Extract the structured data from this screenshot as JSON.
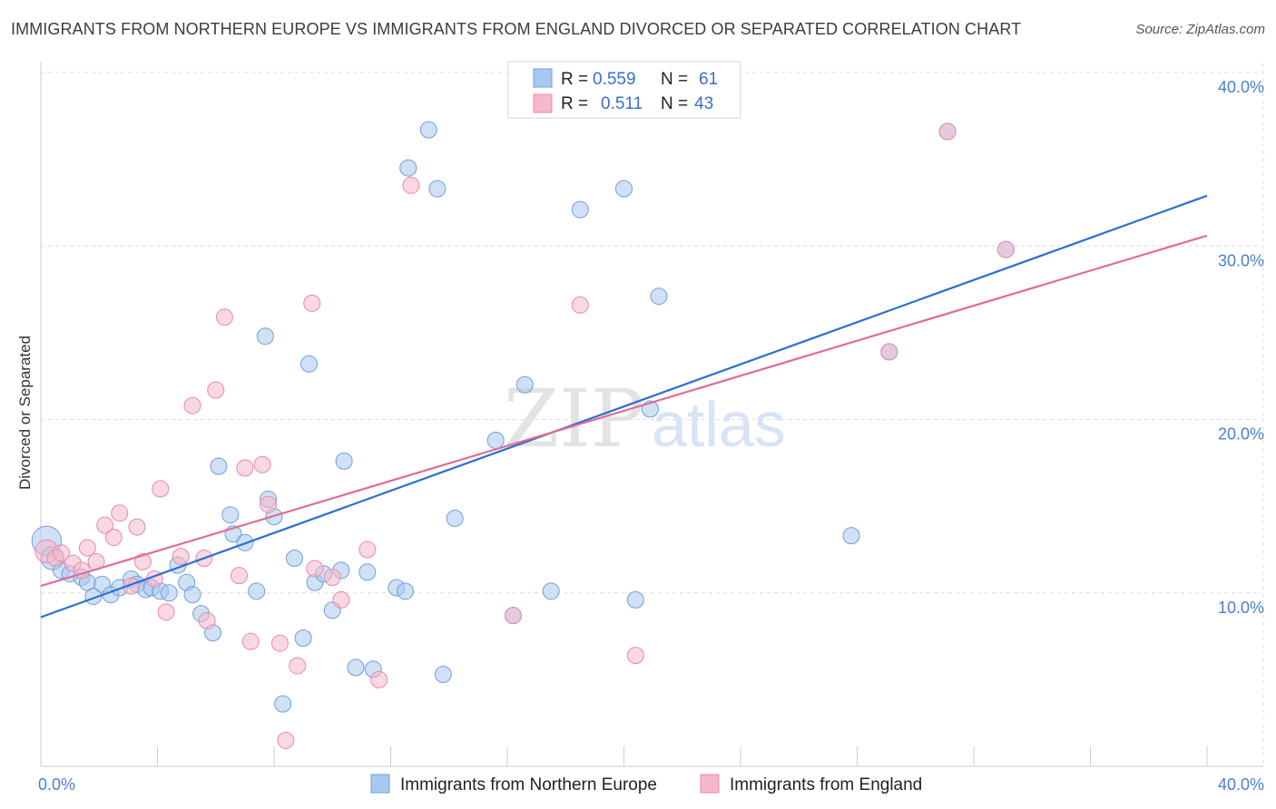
{
  "title": "IMMIGRANTS FROM NORTHERN EUROPE VS IMMIGRANTS FROM ENGLAND DIVORCED OR SEPARATED CORRELATION CHART",
  "source": "Source: ZipAtlas.com",
  "watermark": {
    "zip": "ZIP",
    "atlas": "atlas"
  },
  "colors": {
    "blue_fill": "#a9c8ef",
    "blue_stroke": "#6f9fdc",
    "blue_line": "#2b6fd0",
    "pink_fill": "#f6b8ca",
    "pink_stroke": "#e88aa8",
    "pink_line": "#e06c98",
    "grid": "#dddddd",
    "tick_text": "#4a7fd0"
  },
  "legend": {
    "rows": [
      {
        "r_label": "R =",
        "r_value": "0.559",
        "n_label": "N =",
        "n_value": "61"
      },
      {
        "r_label": "R =",
        "r_value": "0.511",
        "n_label": "N =",
        "n_value": "43"
      }
    ]
  },
  "chart_data": {
    "type": "scatter",
    "ylabel": "Divorced or Separated",
    "xlabel": "",
    "xlim": [
      0,
      40
    ],
    "ylim": [
      0,
      40
    ],
    "x_tick_labels": [
      {
        "value": 0,
        "label": "0.0%"
      },
      {
        "value": 40,
        "label": "40.0%"
      }
    ],
    "y_tick_labels": [
      {
        "value": 10,
        "label": "10.0%"
      },
      {
        "value": 20,
        "label": "20.0%"
      },
      {
        "value": 30,
        "label": "30.0%"
      },
      {
        "value": 40,
        "label": "40.0%"
      }
    ],
    "x_minor_ticks": [
      0,
      4,
      8,
      12,
      16,
      20,
      24,
      28,
      32,
      36,
      40
    ],
    "grid": true,
    "legend_position": "top-center",
    "series": [
      {
        "name": "Immigrants from Northern Europe",
        "color": "blue",
        "trend": {
          "x": [
            0,
            40
          ],
          "y": [
            8.6,
            32.9
          ]
        },
        "points": [
          [
            0.2,
            13.0,
            1.8
          ],
          [
            0.4,
            12.0,
            1.4
          ],
          [
            0.7,
            11.3,
            1
          ],
          [
            1.0,
            11.1,
            1
          ],
          [
            1.4,
            10.9,
            1
          ],
          [
            1.6,
            10.6,
            1
          ],
          [
            1.8,
            9.8,
            1
          ],
          [
            2.1,
            10.5,
            1
          ],
          [
            2.4,
            9.9,
            1
          ],
          [
            2.7,
            10.3,
            1
          ],
          [
            3.1,
            10.8,
            1
          ],
          [
            3.3,
            10.5,
            1
          ],
          [
            3.6,
            10.2,
            1
          ],
          [
            3.8,
            10.3,
            1
          ],
          [
            4.1,
            10.1,
            1
          ],
          [
            4.4,
            10.0,
            1
          ],
          [
            4.7,
            11.6,
            1
          ],
          [
            5.0,
            10.6,
            1
          ],
          [
            5.2,
            9.9,
            1
          ],
          [
            5.5,
            8.8,
            1
          ],
          [
            5.9,
            7.7,
            1
          ],
          [
            6.1,
            17.3,
            1
          ],
          [
            6.5,
            14.5,
            1
          ],
          [
            6.6,
            13.4,
            1
          ],
          [
            7.0,
            12.9,
            1
          ],
          [
            7.4,
            10.1,
            1
          ],
          [
            7.7,
            24.8,
            1
          ],
          [
            7.8,
            15.4,
            1
          ],
          [
            8.0,
            14.4,
            1
          ],
          [
            8.3,
            3.6,
            1
          ],
          [
            8.7,
            12.0,
            1
          ],
          [
            9.0,
            7.4,
            1
          ],
          [
            9.2,
            23.2,
            1
          ],
          [
            9.4,
            10.6,
            1
          ],
          [
            9.7,
            11.1,
            1
          ],
          [
            10.0,
            9.0,
            1
          ],
          [
            10.3,
            11.3,
            1
          ],
          [
            10.4,
            17.6,
            1
          ],
          [
            10.8,
            5.7,
            1
          ],
          [
            11.2,
            11.2,
            1
          ],
          [
            11.4,
            5.6,
            1
          ],
          [
            12.2,
            10.3,
            1
          ],
          [
            12.5,
            10.1,
            1
          ],
          [
            12.6,
            34.5,
            1
          ],
          [
            13.3,
            36.7,
            1
          ],
          [
            13.6,
            33.3,
            1
          ],
          [
            13.8,
            5.3,
            1
          ],
          [
            14.2,
            14.3,
            1
          ],
          [
            15.6,
            18.8,
            1
          ],
          [
            16.2,
            8.7,
            1
          ],
          [
            16.6,
            22.0,
            1
          ],
          [
            17.5,
            10.1,
            1
          ],
          [
            18.5,
            32.1,
            1
          ],
          [
            20.0,
            33.3,
            1
          ],
          [
            20.4,
            9.6,
            1
          ],
          [
            20.9,
            20.6,
            1
          ],
          [
            21.2,
            27.1,
            1
          ],
          [
            27.8,
            13.3,
            1
          ],
          [
            29.1,
            23.9,
            1
          ],
          [
            31.1,
            36.6,
            1
          ],
          [
            33.1,
            29.8,
            1
          ]
        ]
      },
      {
        "name": "Immigrants from England",
        "color": "pink",
        "trend": {
          "x": [
            0,
            40
          ],
          "y": [
            10.4,
            30.6
          ]
        },
        "points": [
          [
            0.2,
            12.4,
            1.4
          ],
          [
            0.5,
            12.0,
            1
          ],
          [
            0.7,
            12.3,
            1
          ],
          [
            1.1,
            11.7,
            1
          ],
          [
            1.4,
            11.3,
            1
          ],
          [
            1.6,
            12.6,
            1
          ],
          [
            1.9,
            11.8,
            1
          ],
          [
            2.2,
            13.9,
            1
          ],
          [
            2.5,
            13.2,
            1
          ],
          [
            2.7,
            14.6,
            1
          ],
          [
            3.1,
            10.4,
            1
          ],
          [
            3.3,
            13.8,
            1
          ],
          [
            3.5,
            11.8,
            1
          ],
          [
            3.9,
            10.8,
            1
          ],
          [
            4.1,
            16.0,
            1
          ],
          [
            4.3,
            8.9,
            1
          ],
          [
            4.8,
            12.1,
            1
          ],
          [
            5.2,
            20.8,
            1
          ],
          [
            5.6,
            12.0,
            1
          ],
          [
            5.7,
            8.4,
            1
          ],
          [
            6.0,
            21.7,
            1
          ],
          [
            6.3,
            25.9,
            1
          ],
          [
            6.8,
            11.0,
            1
          ],
          [
            7.0,
            17.2,
            1
          ],
          [
            7.2,
            7.2,
            1
          ],
          [
            7.6,
            17.4,
            1
          ],
          [
            7.8,
            15.1,
            1
          ],
          [
            8.2,
            7.1,
            1
          ],
          [
            8.4,
            1.5,
            1
          ],
          [
            8.8,
            5.8,
            1
          ],
          [
            9.3,
            26.7,
            1
          ],
          [
            9.4,
            11.4,
            1
          ],
          [
            10.0,
            10.9,
            1
          ],
          [
            10.3,
            9.6,
            1
          ],
          [
            11.2,
            12.5,
            1
          ],
          [
            11.6,
            5.0,
            1
          ],
          [
            12.7,
            33.5,
            1
          ],
          [
            16.2,
            8.7,
            1
          ],
          [
            18.5,
            26.6,
            1
          ],
          [
            20.4,
            6.4,
            1
          ],
          [
            29.1,
            23.9,
            1
          ],
          [
            31.1,
            36.6,
            1
          ],
          [
            33.1,
            29.8,
            1
          ]
        ]
      }
    ],
    "bottom_legend": [
      "Immigrants from Northern Europe",
      "Immigrants from England"
    ]
  }
}
